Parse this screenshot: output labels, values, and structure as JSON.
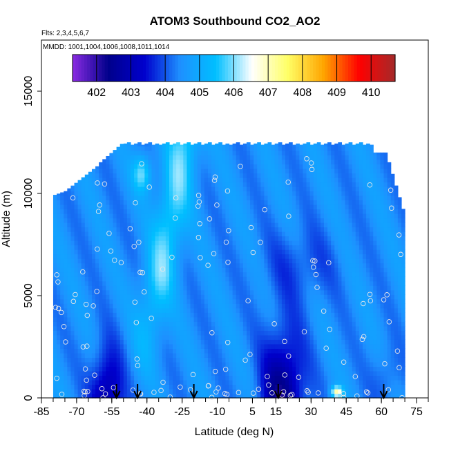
{
  "chart_data": {
    "type": "heatmap",
    "title": "ATOM3 Southbound CO2_AO2",
    "flights_note": "Flts: 2,3,4,5,6,7",
    "dates_note": "MMDD: 1001,1004,1006,1008,1011,1014",
    "xlabel": "Latitude (deg N)",
    "ylabel": "Altitude (m)",
    "xlim": [
      -85,
      80
    ],
    "ylim": [
      0,
      17500
    ],
    "x_ticks": [
      -85,
      -70,
      -55,
      -40,
      -25,
      -10,
      5,
      15,
      30,
      45,
      60,
      75
    ],
    "y_ticks": [
      0,
      5000,
      10000,
      15000
    ],
    "colorbar": {
      "ticks": [
        402,
        403,
        404,
        405,
        406,
        407,
        408,
        409,
        410
      ],
      "range": [
        401.3,
        410.7
      ],
      "stops": [
        "#8a2be2",
        "#00008b",
        "#0000cd",
        "#1e90ff",
        "#00bfff",
        "#ffffff",
        "#ffff66",
        "#ffa500",
        "#ff0000",
        "#a52a2a"
      ]
    },
    "field": {
      "lat_range": [
        -80,
        70
      ],
      "alt_range": [
        0,
        12500
      ],
      "base_ppm": 404.5
    },
    "flight_arrows_lat": [
      -53,
      -44,
      -20,
      16,
      61
    ]
  }
}
